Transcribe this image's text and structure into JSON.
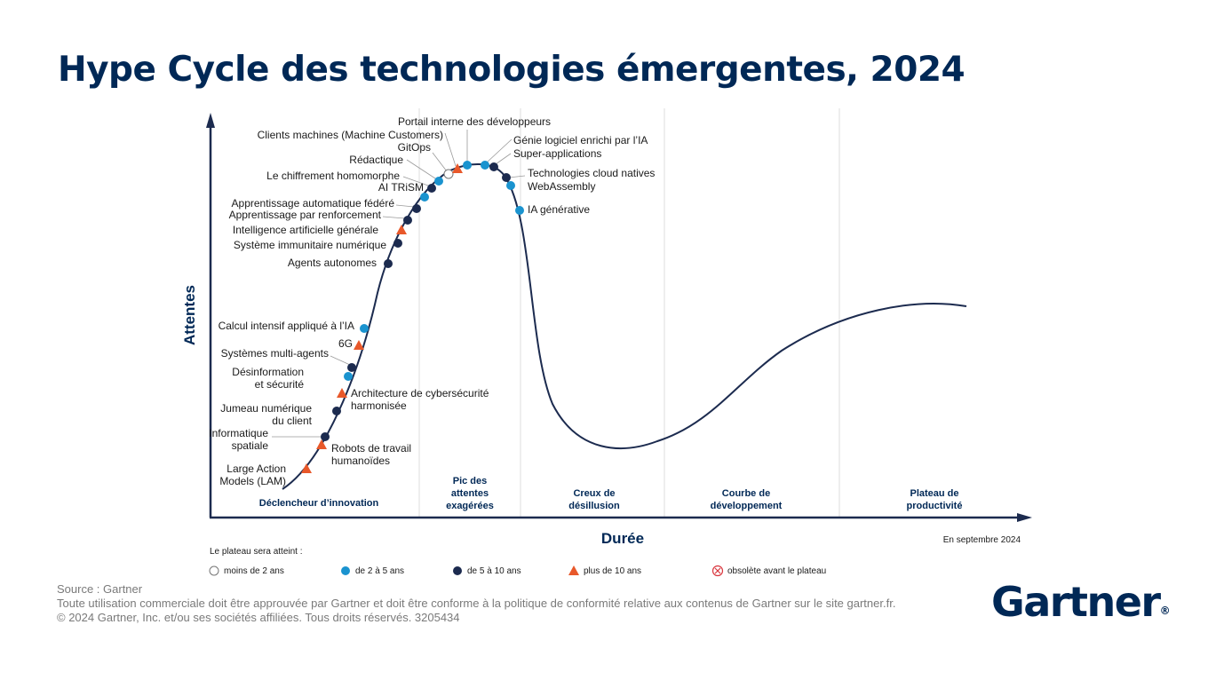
{
  "title": "Hype Cycle des technologies émergentes, 2024",
  "footer": {
    "source": "Source : Gartner",
    "line2": "Toute utilisation commerciale doit être approuvée par Gartner et doit être conforme à la politique de conformité relative aux contenus de Gartner sur le site gartner.fr.",
    "line3": "© 2024 Gartner, Inc. et/ou ses sociétés affiliées. Tous droits réservés. 3205434"
  },
  "logo": {
    "text": "Gartner",
    "mark": "®"
  },
  "colors": {
    "navy": "#1c2b4f",
    "teal": "#1a93cf",
    "orange": "#e8582a",
    "obsolete": "#d9363e",
    "grid": "#dcdcdc"
  },
  "chart_data": {
    "type": "hype-cycle",
    "title": "Hype Cycle des technologies émergentes, 2024",
    "ylabel": "Attentes",
    "xlabel": "Durée",
    "date_note": "En septembre 2024",
    "phases": [
      [
        "Déclencheur d’innovation"
      ],
      [
        "Pic des",
        "attentes",
        "exagérées"
      ],
      [
        "Creux de",
        "désillusion"
      ],
      [
        "Courbe de",
        "développement"
      ],
      [
        "Plateau de",
        "productivité"
      ]
    ],
    "legend": {
      "title": "Le plateau sera atteint :",
      "items": [
        {
          "key": "lt2",
          "label": "moins de 2 ans",
          "shape": "circle-open"
        },
        {
          "key": "2to5",
          "label": "de 2 à 5 ans",
          "shape": "circle-teal"
        },
        {
          "key": "5to10",
          "label": "de 5 à 10 ans",
          "shape": "circle-navy"
        },
        {
          "key": "gt10",
          "label": "plus de 10 ans",
          "shape": "triangle-orange"
        },
        {
          "key": "obsolete",
          "label": "obsolète avant le plateau",
          "shape": "circle-cross"
        }
      ]
    },
    "technologies": [
      {
        "name": [
          "Large Action",
          "Models (LAM)"
        ],
        "plateau": "gt10"
      },
      {
        "name": [
          "Robots de travail",
          "humanoïdes"
        ],
        "plateau": "gt10"
      },
      {
        "name": [
          "Informatique",
          "spatiale"
        ],
        "plateau": "5to10"
      },
      {
        "name": [
          "Jumeau numérique",
          "du client"
        ],
        "plateau": "5to10"
      },
      {
        "name": [
          "Architecture de cybersécurité",
          "harmonisée"
        ],
        "plateau": "gt10"
      },
      {
        "name": [
          "Désinformation",
          "et sécurité"
        ],
        "plateau": "2to5"
      },
      {
        "name": [
          "Systèmes multi-agents"
        ],
        "plateau": "5to10"
      },
      {
        "name": [
          "6G"
        ],
        "plateau": "gt10"
      },
      {
        "name": [
          "Calcul intensif appliqué à l’IA"
        ],
        "plateau": "2to5"
      },
      {
        "name": [
          "Agents autonomes"
        ],
        "plateau": "5to10"
      },
      {
        "name": [
          "Système immunitaire numérique"
        ],
        "plateau": "5to10"
      },
      {
        "name": [
          "Intelligence artificielle générale"
        ],
        "plateau": "gt10"
      },
      {
        "name": [
          "Apprentissage par renforcement"
        ],
        "plateau": "5to10"
      },
      {
        "name": [
          "Apprentissage automatique fédéré"
        ],
        "plateau": "5to10"
      },
      {
        "name": [
          "AI TRiSM"
        ],
        "plateau": "2to5"
      },
      {
        "name": [
          "Le chiffrement homomorphe"
        ],
        "plateau": "5to10"
      },
      {
        "name": [
          "Rédactique"
        ],
        "plateau": "2to5"
      },
      {
        "name": [
          "GitOps"
        ],
        "plateau": "lt2"
      },
      {
        "name": [
          "Clients machines (Machine Customers)"
        ],
        "plateau": "gt10"
      },
      {
        "name": [
          "Portail interne des développeurs"
        ],
        "plateau": "2to5"
      },
      {
        "name": [
          "Génie logiciel enrichi par l’IA"
        ],
        "plateau": "2to5"
      },
      {
        "name": [
          "Super-applications"
        ],
        "plateau": "5to10"
      },
      {
        "name": [
          "Technologies cloud natives"
        ],
        "plateau": "5to10"
      },
      {
        "name": [
          "WebAssembly"
        ],
        "plateau": "2to5"
      },
      {
        "name": [
          "IA générative"
        ],
        "plateau": "2to5"
      }
    ]
  }
}
